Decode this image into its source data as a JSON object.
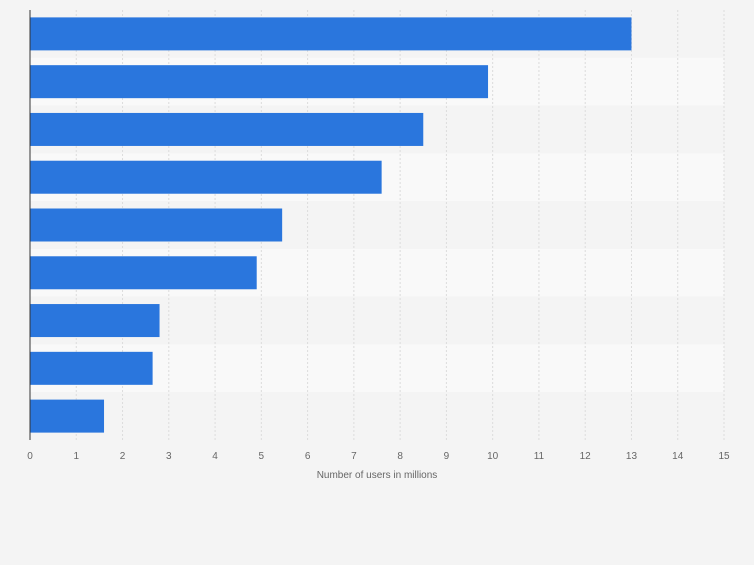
{
  "chart_data": {
    "type": "bar",
    "orientation": "horizontal",
    "categories": [
      "",
      "",
      "",
      "",
      "",
      "",
      "",
      "",
      ""
    ],
    "values": [
      13.0,
      9.9,
      8.5,
      7.6,
      5.45,
      4.9,
      2.8,
      2.65,
      1.6
    ],
    "xlabel": "Number of users in millions",
    "ylabel": "",
    "xlim": [
      0,
      15
    ],
    "xticks": [
      0,
      1,
      2,
      3,
      4,
      5,
      6,
      7,
      8,
      9,
      10,
      11,
      12,
      13,
      14,
      15
    ],
    "grid": true,
    "legend": "none",
    "colors": {
      "bar": "#2a76dd",
      "background": "#f4f4f4",
      "band_light": "#f9f9f9",
      "band_dark": "#f4f4f4",
      "grid": "#dcdcdc",
      "axis": "#333333",
      "tick_text": "#666666"
    }
  }
}
